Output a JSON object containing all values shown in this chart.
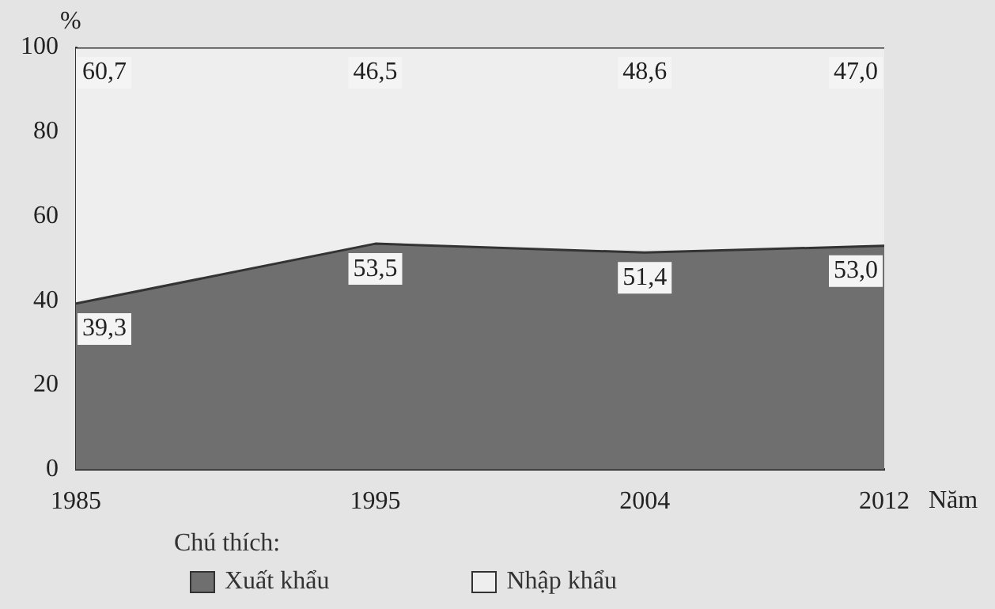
{
  "chart_data": {
    "type": "area",
    "stacked": true,
    "ylabel": "%",
    "xlabel": "Năm",
    "legend_title": "Chú thích:",
    "legend": "bottom",
    "grid": false,
    "x": [
      1985,
      1995,
      2004,
      2012
    ],
    "xlim": [
      1985,
      2012
    ],
    "xticks": [
      1985,
      1995,
      2004,
      2012
    ],
    "ylim": [
      0,
      100
    ],
    "yticks": [
      0,
      20,
      40,
      60,
      80,
      100
    ],
    "series": [
      {
        "name": "Xuất khẩu",
        "color": "#6f6f6f",
        "values": [
          39.3,
          53.5,
          51.4,
          53.0
        ],
        "value_labels": [
          "39,3",
          "53,5",
          "51,4",
          "53,0"
        ]
      },
      {
        "name": "Nhập khẩu",
        "color": "#eeeeee",
        "values": [
          60.7,
          46.5,
          48.6,
          47.0
        ],
        "value_labels": [
          "60,7",
          "46,5",
          "48,6",
          "47,0"
        ]
      }
    ]
  }
}
